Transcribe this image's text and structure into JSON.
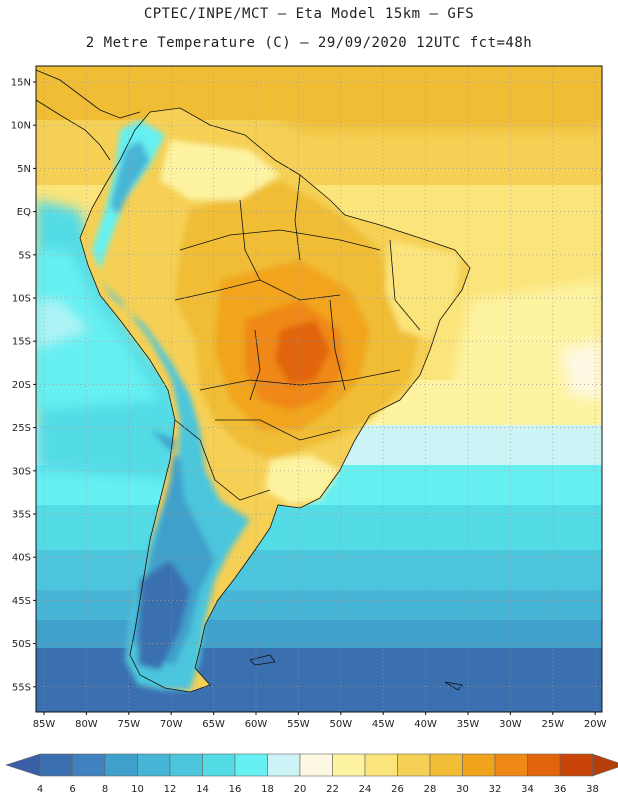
{
  "header": {
    "line1": "CPTEC/INPE/MCT –  Eta Model 15km – GFS",
    "line2": "2 Metre Temperature (C) – 29/09/2020 12UTC fct=48h"
  },
  "map": {
    "lat_labels": [
      "15N",
      "10N",
      "5N",
      "EQ",
      "5S",
      "10S",
      "15S",
      "20S",
      "25S",
      "30S",
      "35S",
      "40S",
      "45S",
      "50S",
      "55S"
    ],
    "lon_labels": [
      "85W",
      "80W",
      "75W",
      "70W",
      "65W",
      "60W",
      "55W",
      "50W",
      "45W",
      "40W",
      "35W",
      "30W",
      "25W",
      "20W"
    ]
  },
  "colorbar": {
    "ticks": [
      "4",
      "6",
      "8",
      "10",
      "12",
      "14",
      "16",
      "18",
      "20",
      "22",
      "24",
      "26",
      "28",
      "30",
      "32",
      "34",
      "36",
      "38"
    ],
    "colors": [
      "#3a6fb0",
      "#3f82bf",
      "#3fa0cc",
      "#47b5d6",
      "#4cc6dd",
      "#53dbe6",
      "#66f0f2",
      "#ccf4f7",
      "#fdf8e1",
      "#fdf3a0",
      "#fbe47a",
      "#f5d055",
      "#f0bd35",
      "#f1a41b",
      "#ef8815",
      "#e2650e",
      "#c84409"
    ],
    "low_cap_color": "#3a5fa6",
    "high_cap_color": "#b63e0b"
  }
}
